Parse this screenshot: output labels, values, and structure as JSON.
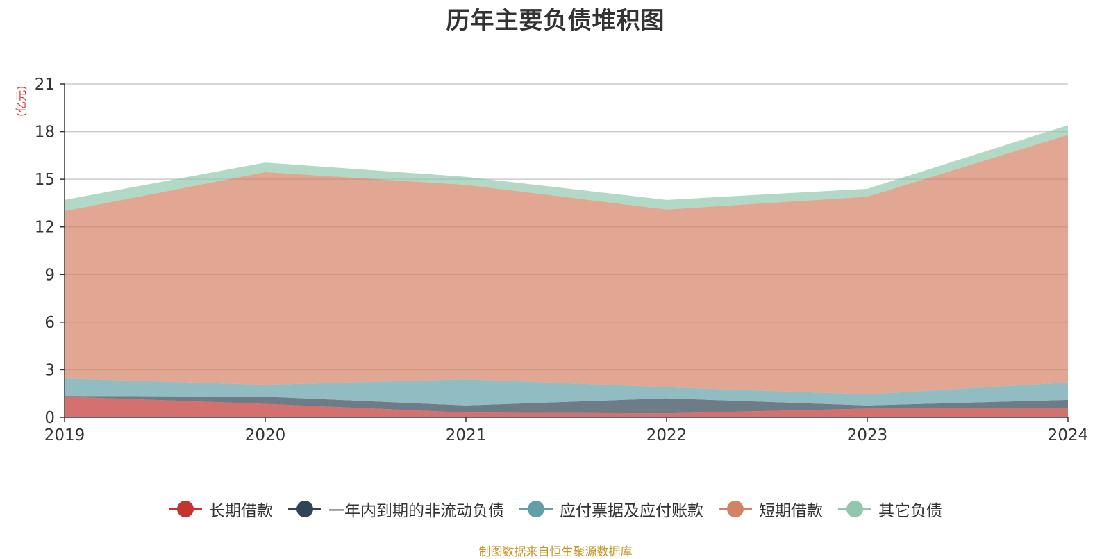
{
  "chart_data": {
    "type": "area",
    "stacked": true,
    "title": "历年主要负债堆积图",
    "unit_label": "(亿元)",
    "categories": [
      "2019",
      "2020",
      "2021",
      "2022",
      "2023",
      "2024"
    ],
    "ylim": [
      0,
      21
    ],
    "yticks": [
      "0",
      "3",
      "6",
      "9",
      "12",
      "15",
      "18",
      "21"
    ],
    "grid": true,
    "legend_position": "bottom",
    "series": [
      {
        "name": "长期借款",
        "color": "#c23531",
        "values": [
          1.3,
          0.85,
          0.3,
          0.25,
          0.55,
          0.55
        ]
      },
      {
        "name": "一年内到期的非流动负债",
        "color": "#2f4554",
        "values": [
          0.05,
          0.45,
          0.45,
          0.95,
          0.2,
          0.55
        ]
      },
      {
        "name": "应付票据及应付账款",
        "color": "#61a0a8",
        "values": [
          1.1,
          0.75,
          1.65,
          0.7,
          0.7,
          1.1
        ]
      },
      {
        "name": "短期借款",
        "color": "#d48265",
        "values": [
          10.55,
          13.4,
          12.25,
          11.2,
          12.45,
          15.6
        ]
      },
      {
        "name": "其它负债",
        "color": "#91c7ae",
        "values": [
          0.7,
          0.6,
          0.5,
          0.6,
          0.5,
          0.6
        ]
      }
    ]
  },
  "source_note": "制图数据来自恒生聚源数据库"
}
